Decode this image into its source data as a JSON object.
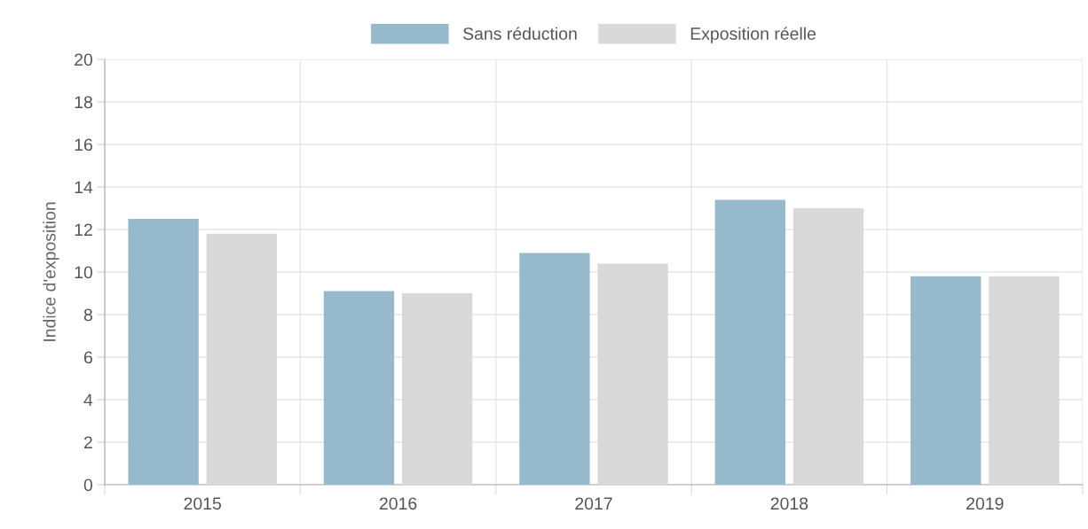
{
  "chart_data": {
    "type": "bar",
    "ylabel": "Indice d'exposition",
    "categories": [
      "2015",
      "2016",
      "2017",
      "2018",
      "2019"
    ],
    "series": [
      {
        "name": "Sans réduction",
        "color": "#97b9cc",
        "values": [
          12.5,
          9.1,
          10.9,
          13.4,
          9.8
        ]
      },
      {
        "name": "Exposition réelle",
        "color": "#d9d9d9",
        "values": [
          11.8,
          9.0,
          10.4,
          13.0,
          9.8
        ]
      }
    ],
    "ylim": [
      0,
      20
    ],
    "yticks": [
      0,
      2,
      4,
      6,
      8,
      10,
      12,
      14,
      16,
      18,
      20
    ],
    "grid": true,
    "legend": "top"
  }
}
